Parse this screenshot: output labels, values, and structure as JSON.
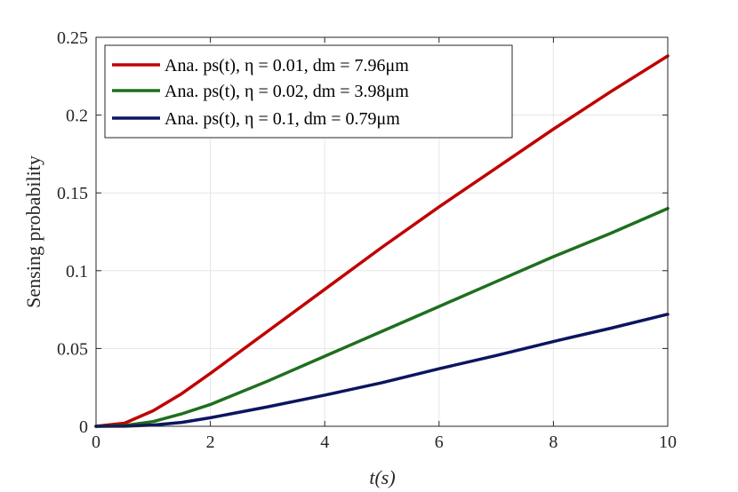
{
  "chart_data": {
    "type": "line",
    "xlabel": "t(s)",
    "ylabel": "Sensing probability",
    "xlim": [
      0,
      10
    ],
    "ylim": [
      0,
      0.25
    ],
    "x_ticks": [
      "0",
      "2",
      "4",
      "6",
      "8",
      "10"
    ],
    "y_ticks": [
      "0",
      "0.05",
      "0.1",
      "0.15",
      "0.2",
      "0.25"
    ],
    "grid": true,
    "legend_position": "top-left",
    "series": [
      {
        "name": "Ana. ps(t), η = 0.01, dm = 7.96μm",
        "color": "#c00000",
        "x": [
          0,
          0.5,
          1,
          1.5,
          2,
          3,
          4,
          5,
          6,
          7,
          8,
          9,
          10
        ],
        "y": [
          0,
          0.002,
          0.01,
          0.021,
          0.034,
          0.061,
          0.088,
          0.115,
          0.141,
          0.166,
          0.191,
          0.215,
          0.238
        ]
      },
      {
        "name": "Ana. ps(t), η = 0.02, dm = 3.98μm",
        "color": "#1e6f1e",
        "x": [
          0,
          0.5,
          1,
          1.5,
          2,
          3,
          4,
          5,
          6,
          7,
          8,
          9,
          10
        ],
        "y": [
          0,
          0.0005,
          0.003,
          0.008,
          0.014,
          0.029,
          0.045,
          0.061,
          0.077,
          0.093,
          0.109,
          0.124,
          0.14
        ]
      },
      {
        "name": "Ana. ps(t), η = 0.1, dm = 0.79μm",
        "color": "#0c1560",
        "x": [
          0,
          0.5,
          1,
          1.5,
          2,
          3,
          4,
          5,
          6,
          7,
          8,
          9,
          10
        ],
        "y": [
          0,
          0.0001,
          0.0008,
          0.0025,
          0.0055,
          0.0125,
          0.02,
          0.028,
          0.037,
          0.0455,
          0.0545,
          0.063,
          0.072
        ]
      }
    ]
  }
}
